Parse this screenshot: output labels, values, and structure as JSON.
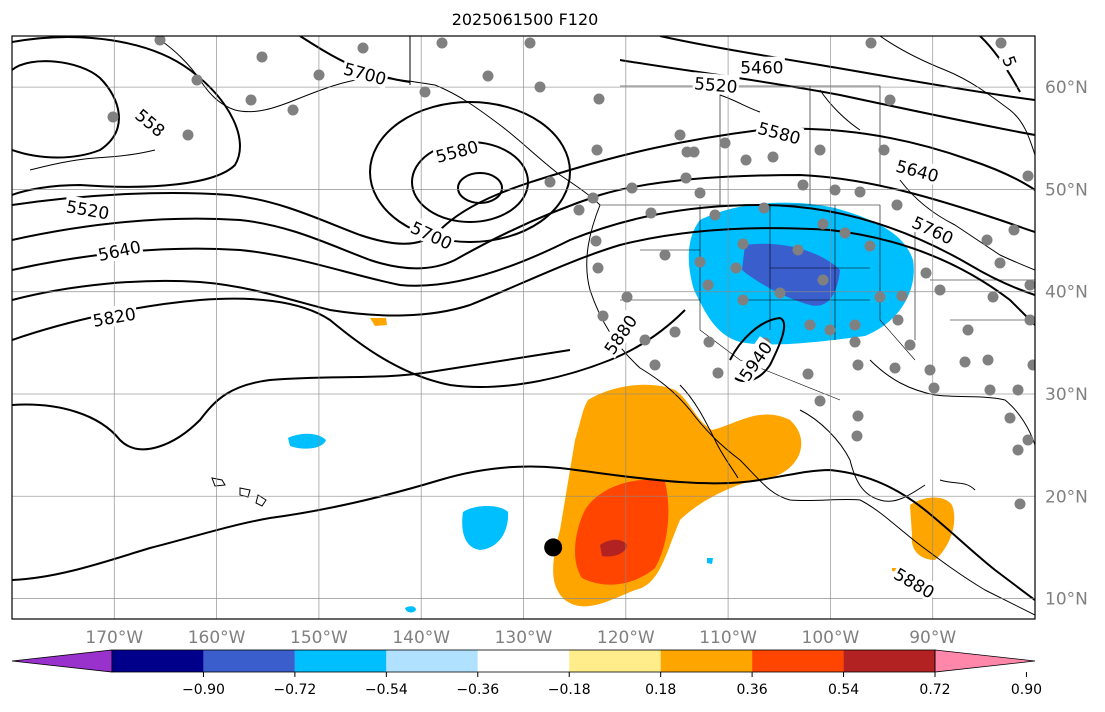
{
  "title": "2025061500 F120",
  "projection": {
    "lon_range": [
      -180,
      -80
    ],
    "lat_range": [
      8,
      65
    ]
  },
  "latitude_labels": [
    "10°N",
    "20°N",
    "30°N",
    "40°N",
    "50°N",
    "60°N"
  ],
  "longitude_labels": [
    "170°W",
    "160°W",
    "150°W",
    "140°W",
    "130°W",
    "120°W",
    "110°W",
    "100°W",
    "90°W"
  ],
  "height_contours": {
    "labels": [
      {
        "text": "5460",
        "lon": -106.7,
        "lat": 61.9,
        "rot": 0
      },
      {
        "text": "5520",
        "lon": -111.2,
        "lat": 60.2,
        "rot": 5
      },
      {
        "text": "5520",
        "lon": -172.6,
        "lat": 48.0,
        "rot": 10
      },
      {
        "text": "558",
        "lon": -166.5,
        "lat": 56.5,
        "rot": 40
      },
      {
        "text": "5580",
        "lon": -136.5,
        "lat": 53.7,
        "rot": -15
      },
      {
        "text": "5580",
        "lon": -105.0,
        "lat": 55.5,
        "rot": 15
      },
      {
        "text": "5640",
        "lon": -169.5,
        "lat": 44.0,
        "rot": -12
      },
      {
        "text": "5640",
        "lon": -91.5,
        "lat": 51.8,
        "rot": 15
      },
      {
        "text": "5700",
        "lon": -145.5,
        "lat": 61.3,
        "rot": 15
      },
      {
        "text": "5700",
        "lon": -139.0,
        "lat": 45.5,
        "rot": 25
      },
      {
        "text": "5760",
        "lon": -90.0,
        "lat": 46.0,
        "rot": 25
      },
      {
        "text": "5820",
        "lon": -170.0,
        "lat": 37.5,
        "rot": -10
      },
      {
        "text": "5880",
        "lon": -120.5,
        "lat": 35.8,
        "rot": -55
      },
      {
        "text": "5880",
        "lon": -91.8,
        "lat": 11.5,
        "rot": 30
      },
      {
        "text": "5940",
        "lon": -107.3,
        "lat": 33.2,
        "rot": -55
      },
      {
        "text": "5",
        "lon": -82.5,
        "lat": 62.5,
        "rot": 70
      }
    ]
  },
  "anomaly_shading": {
    "levels": [
      -0.9,
      -0.72,
      -0.54,
      -0.36,
      -0.18,
      0.18,
      0.36,
      0.54,
      0.72,
      0.9
    ],
    "colors": [
      "#9932cc",
      "#00008b",
      "#3a5fcd",
      "#00bfff",
      "#b0e2ff",
      "#ffffff",
      "#ffec8b",
      "#ffa500",
      "#ff4500",
      "#b22222",
      "#ff88aa"
    ],
    "colorbar_labels": [
      "−0.90",
      "−0.72",
      "−0.54",
      "−0.36",
      "−0.18",
      "0.18",
      "0.36",
      "0.54",
      "0.72",
      "0.90"
    ]
  },
  "marker": {
    "lon": -127.1,
    "lat": 15.0,
    "color": "#000000"
  }
}
